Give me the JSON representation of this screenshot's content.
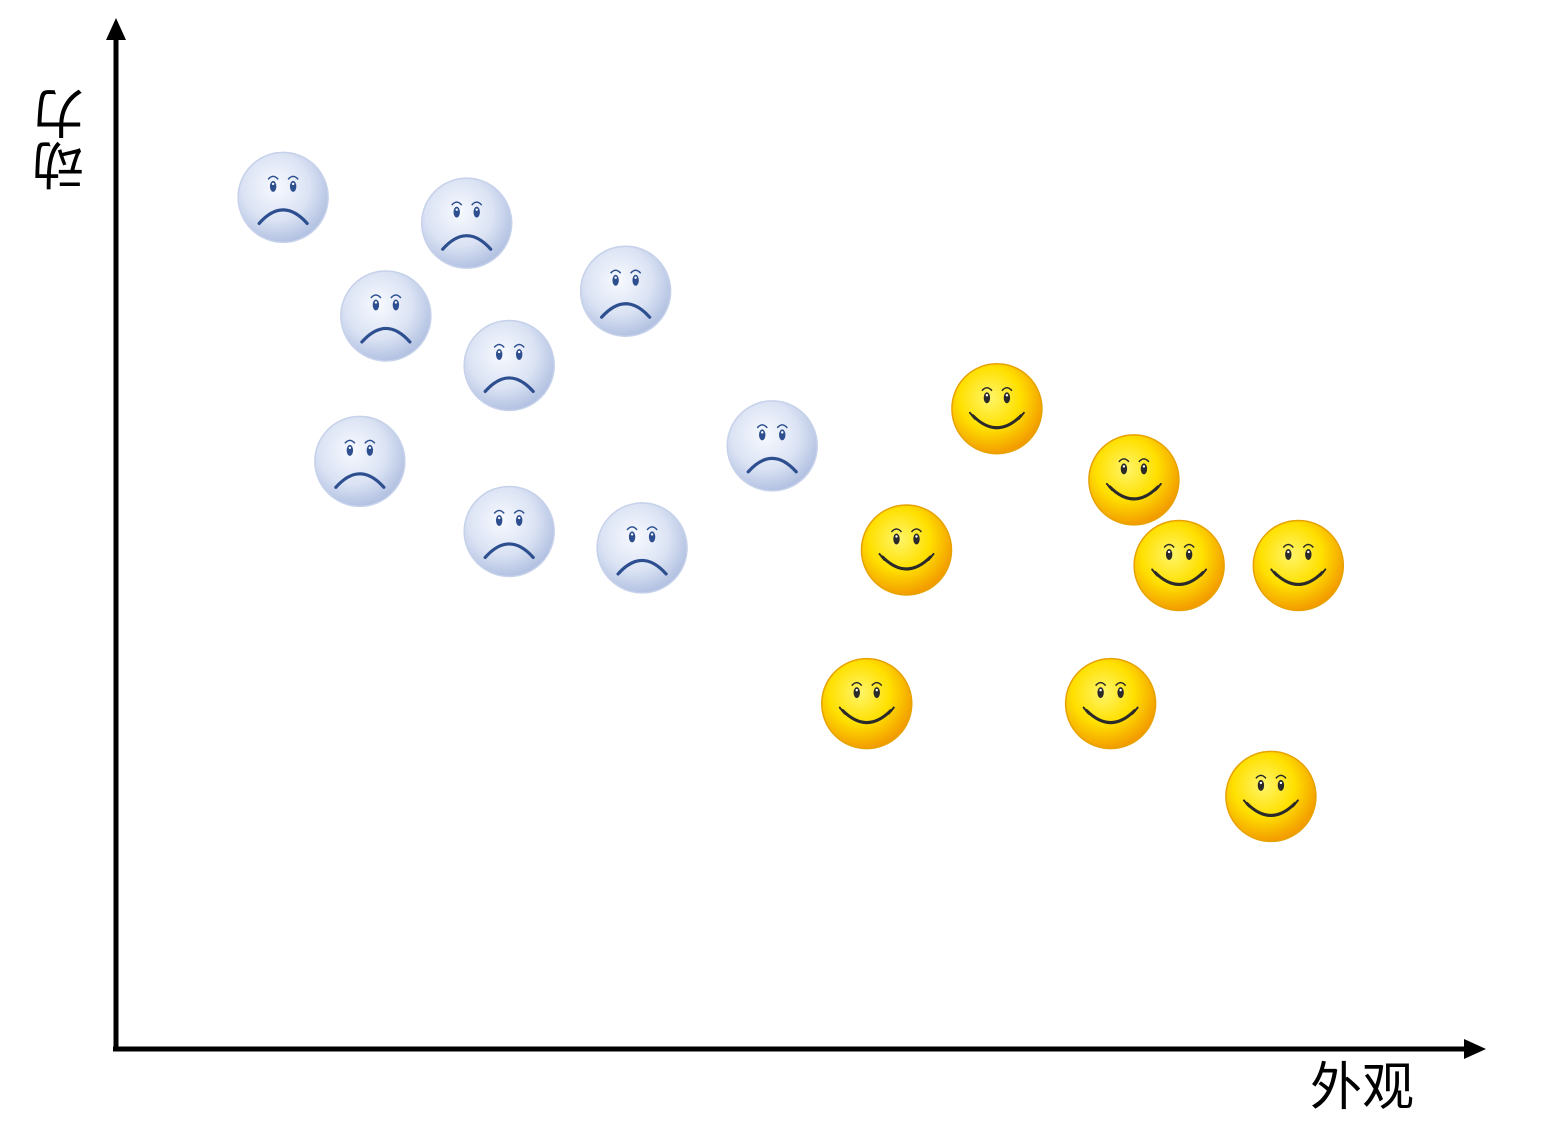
{
  "chart_data": {
    "type": "scatter",
    "title": "",
    "xlabel": "外观",
    "ylabel": "动力",
    "xlim": [
      0,
      100
    ],
    "ylim": [
      0,
      100
    ],
    "grid": false,
    "legend": "none",
    "series": [
      {
        "marker": "sad-face-icon",
        "color": "#c9d4ec",
        "accent": "#2d4f8f",
        "points": [
          {
            "x": 12.2,
            "y": 82.6
          },
          {
            "x": 25.6,
            "y": 80.1
          },
          {
            "x": 19.7,
            "y": 71.1
          },
          {
            "x": 37.2,
            "y": 73.5
          },
          {
            "x": 28.7,
            "y": 66.3
          },
          {
            "x": 17.8,
            "y": 57.0
          },
          {
            "x": 47.9,
            "y": 58.5
          },
          {
            "x": 28.7,
            "y": 50.2
          },
          {
            "x": 38.4,
            "y": 48.6
          }
        ]
      },
      {
        "marker": "smiley-face-icon",
        "color": "#ffe000",
        "accent": "#f39c00",
        "points": [
          {
            "x": 64.3,
            "y": 62.1
          },
          {
            "x": 74.3,
            "y": 55.2
          },
          {
            "x": 57.7,
            "y": 48.4
          },
          {
            "x": 77.6,
            "y": 46.9
          },
          {
            "x": 86.3,
            "y": 46.9
          },
          {
            "x": 54.8,
            "y": 33.5
          },
          {
            "x": 72.6,
            "y": 33.5
          },
          {
            "x": 84.3,
            "y": 24.5
          }
        ]
      }
    ]
  }
}
